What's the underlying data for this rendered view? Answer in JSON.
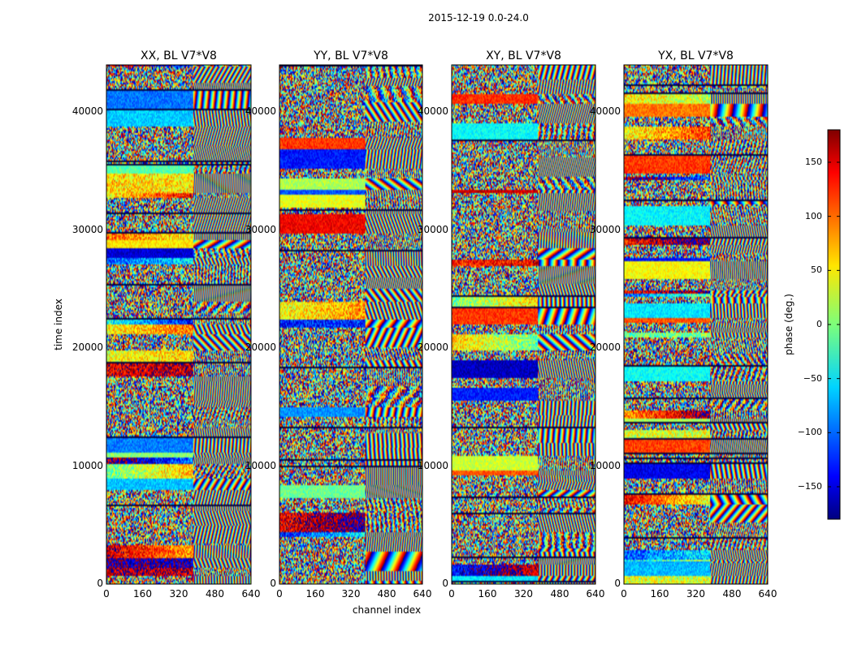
{
  "chart_data": [
    {
      "type": "heatmap",
      "title": "XX, BL V7*V8",
      "xlabel": "",
      "ylabel": "time index",
      "xlim": [
        0,
        640
      ],
      "ylim": [
        0,
        44000
      ],
      "xticks": [
        "0",
        "160",
        "320",
        "480",
        "640"
      ],
      "yticks": [
        "0",
        "10000",
        "20000",
        "30000",
        "40000"
      ]
    },
    {
      "type": "heatmap",
      "title": "YY, BL V7*V8",
      "xlabel": "channel index",
      "ylabel": "",
      "xlim": [
        0,
        640
      ],
      "ylim": [
        0,
        44000
      ],
      "xticks": [
        "0",
        "160",
        "320",
        "480",
        "640"
      ],
      "yticks": [
        "0",
        "10000",
        "20000",
        "30000",
        "40000"
      ]
    },
    {
      "type": "heatmap",
      "title": "XY, BL V7*V8",
      "xlabel": "",
      "ylabel": "",
      "xlim": [
        0,
        640
      ],
      "ylim": [
        0,
        44000
      ],
      "xticks": [
        "0",
        "160",
        "320",
        "480",
        "640"
      ],
      "yticks": [
        "0",
        "10000",
        "20000",
        "30000",
        "40000"
      ]
    },
    {
      "type": "heatmap",
      "title": "YX, BL V7*V8",
      "xlabel": "",
      "ylabel": "",
      "xlim": [
        0,
        640
      ],
      "ylim": [
        0,
        44000
      ],
      "xticks": [
        "0",
        "160",
        "320",
        "480",
        "640"
      ],
      "yticks": [
        "0",
        "10000",
        "20000",
        "30000",
        "40000"
      ]
    }
  ],
  "figure": {
    "suptitle": "2015-12-19 0.0-24.0"
  },
  "colorbar": {
    "label": "phase (deg.)",
    "range": [
      -180,
      180
    ],
    "ticks": [
      "150",
      "100",
      "50",
      "0",
      "−50",
      "−100",
      "−150"
    ],
    "tick_values": [
      150,
      100,
      50,
      0,
      -50,
      -100,
      -150
    ],
    "colormap": "jet"
  }
}
